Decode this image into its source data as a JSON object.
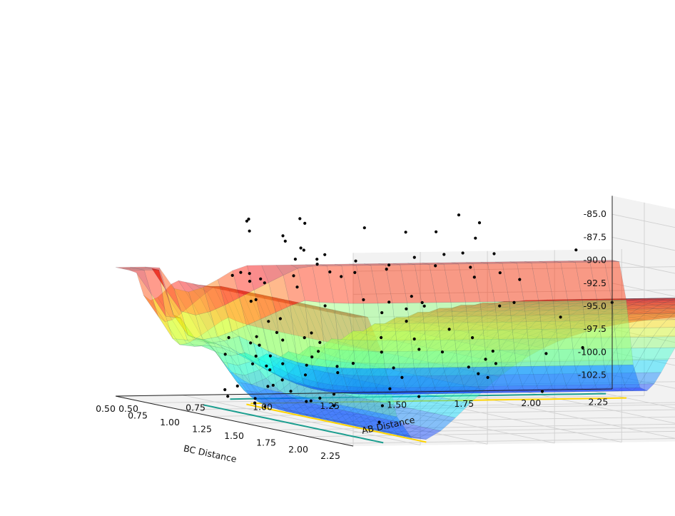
{
  "chart_data": {
    "type": "surface3d",
    "title": "",
    "axes": {
      "x": {
        "label": "BC Distance",
        "range": [
          0.5,
          2.35
        ],
        "ticks": [
          "0.50",
          "0.75",
          "1.00",
          "1.25",
          "1.50",
          "1.75",
          "2.00",
          "2.25"
        ]
      },
      "y": {
        "label": "AB Distance",
        "range": [
          0.5,
          2.35
        ],
        "ticks": [
          "0.50",
          "0.75",
          "1.00",
          "1.25",
          "1.50",
          "1.75",
          "2.00",
          "2.25"
        ]
      },
      "z": {
        "label": "",
        "range": [
          -104,
          -83
        ],
        "ticks": [
          "-85.0",
          "-87.5",
          "-90.0",
          "-92.5",
          "-95.0",
          "-97.5",
          "-100.0",
          "-102.5"
        ]
      }
    },
    "grid": true,
    "surface": {
      "colormap": "jet",
      "alpha": 0.45,
      "plateau_energy": -90.0,
      "well_energy": -103.5,
      "well_minimum_distance": 0.75,
      "saddle_energy": -97.5,
      "saddle_distance": 0.93
    },
    "contours": [
      {
        "color": "#1b9e8f",
        "level": -102.5
      },
      {
        "color": "#ffd400",
        "level": -97.5
      }
    ],
    "scatter": {
      "color": "#000000",
      "description_points": "trajectory samples"
    }
  }
}
